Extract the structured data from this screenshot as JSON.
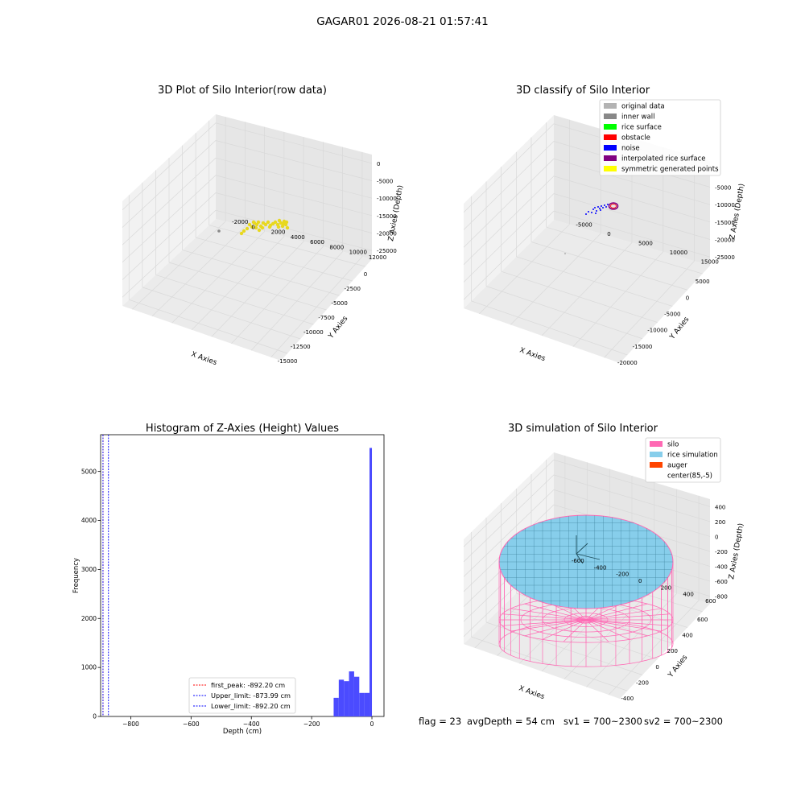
{
  "figure": {
    "suptitle": "GAGAR01 2026-08-21 01:57:41",
    "footer": {
      "flag": "flag = 23",
      "avg_depth": "avgDepth = 54 cm",
      "sv1": "sv1 = 700~2300",
      "sv2": "sv2 = 700~2300"
    }
  },
  "colors": {
    "raw_points": "#e8d81f",
    "inner_wall": "#888888",
    "original_data": "#b3b3b3",
    "rice_surface": "#00ff00",
    "obstacle": "#ff0000",
    "noise": "#0000ff",
    "interpolated": "#800080",
    "symmetric": "#ffff00",
    "silo": "#ff69b4",
    "rice_sim": "#87ceeb",
    "auger": "#ff4500",
    "hist_bar": "#4b4bff"
  },
  "chart_data": [
    {
      "type": "scatter",
      "projection": "3d",
      "title": "3D Plot of Silo Interior(row data)",
      "xlabel": "X Axies",
      "ylabel": "Y Axies",
      "zlabel": "Z Axies (Depth)",
      "xticks": [
        "-15000",
        "-12500",
        "-10000",
        "-7500",
        "-5000",
        "-2500",
        "0"
      ],
      "yticks": [
        "-2000",
        "0",
        "2000",
        "4000",
        "6000",
        "8000",
        "10000",
        "12000"
      ],
      "zticks": [
        "0",
        "-5000",
        "-10000",
        "-15000",
        "-20000",
        "-25000"
      ],
      "grid": true
    },
    {
      "type": "scatter",
      "projection": "3d",
      "title": "3D classify of Silo Interior",
      "zlabel": "Z Axies (Depth)",
      "xlabel": "X Axies",
      "ylabel": "Y Axies",
      "xticks": [
        "-20000",
        "-15000",
        "-10000",
        "-5000",
        "0",
        "5000"
      ],
      "yticks": [
        "-5000",
        "0",
        "5000",
        "10000",
        "15000"
      ],
      "zticks": [
        "0",
        "-5000",
        "-10000",
        "-15000",
        "-20000",
        "-25000"
      ],
      "legend": [
        "original data",
        "inner wall",
        "rice surface",
        "obstacle",
        "noise",
        "interpolated rice surface",
        "symmetric generated points"
      ],
      "legend_position": "top-right",
      "grid": true
    },
    {
      "type": "bar",
      "title": "Histogram of Z-Axies (Height) Values",
      "xlabel": "Depth (cm)",
      "ylabel": "Frequency",
      "xlim": [
        -900,
        40
      ],
      "ylim": [
        0,
        5750
      ],
      "xticks": [
        -800,
        -600,
        -400,
        -200,
        0
      ],
      "yticks": [
        0,
        1000,
        2000,
        3000,
        4000,
        5000
      ],
      "bins": [
        {
          "from": -127,
          "to": -110,
          "count": 380
        },
        {
          "from": -110,
          "to": -93,
          "count": 750
        },
        {
          "from": -93,
          "to": -76,
          "count": 720
        },
        {
          "from": -76,
          "to": -59,
          "count": 920
        },
        {
          "from": -59,
          "to": -42,
          "count": 810
        },
        {
          "from": -42,
          "to": -25,
          "count": 480
        },
        {
          "from": -25,
          "to": -8,
          "count": 480
        },
        {
          "from": -8,
          "to": 0,
          "count": 5480
        }
      ],
      "lines": [
        {
          "name": "first_peak: -892.20 cm",
          "x": -892.2,
          "color": "#ff0000"
        },
        {
          "name": "Upper_limit: -873.99 cm",
          "x": -873.99,
          "color": "#0000ff"
        },
        {
          "name": "Lower_limit: -892.20 cm",
          "x": -892.2,
          "color": "#0000ff"
        }
      ],
      "legend_position": "lower-center",
      "grid": false
    },
    {
      "type": "area",
      "projection": "3d",
      "title": "3D simulation of Silo Interior",
      "xlabel": "X Axies",
      "ylabel": "Y Axies",
      "zlabel": "Z Axies (Depth)",
      "xticks": [
        "-400",
        "-200",
        "0",
        "200",
        "400",
        "600"
      ],
      "yticks": [
        "-600",
        "-400",
        "-200",
        "0",
        "200",
        "400",
        "600"
      ],
      "zticks": [
        "400",
        "200",
        "0",
        "-200",
        "-400",
        "-600",
        "-800"
      ],
      "legend": [
        "silo",
        "rice simulation",
        "auger",
        "center(85,-5)"
      ],
      "legend_position": "top-right",
      "grid": true
    }
  ]
}
